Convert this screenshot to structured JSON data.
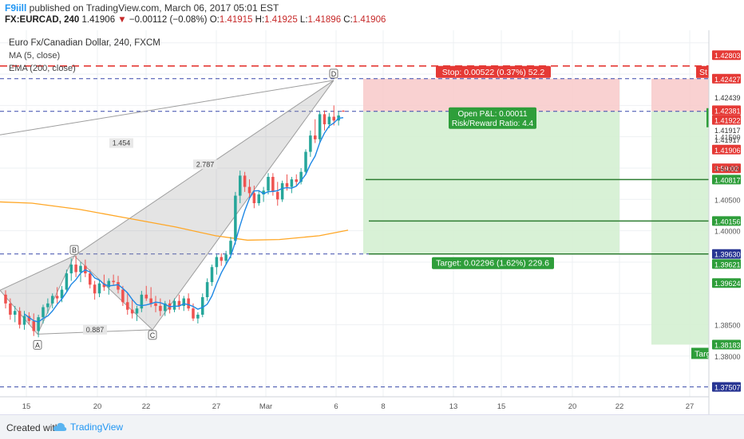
{
  "header": {
    "brand": "F9iill",
    "published": " published on TradingView.com, March 06, 2017 05:01 EST",
    "symbol": "FX:EURCAD, 240",
    "last": "1.41906",
    "arrow": "▼",
    "change": "−0.00112 (−0.08%)",
    "o_label": "O:",
    "o": "1.41915",
    "h_label": "H:",
    "h": "1.41925",
    "l_label": "L:",
    "l": "1.41896",
    "c_label": "C:",
    "c": "1.41906"
  },
  "legend": {
    "title": "Euro Fx/Canadian Dollar, 240, FXCM",
    "ma": "MA (5, close)",
    "ema": "EMA (200, close)"
  },
  "footer": {
    "created": "Created with",
    "brand": "TradingView"
  },
  "colors": {
    "bull": "#26a69a",
    "bear": "#ef5350",
    "ma": "#1e88e5",
    "ema": "#ffa726",
    "stop": "#e53935",
    "target": "#2e7d32",
    "pattern": "#9e9e9e"
  },
  "chart_data": {
    "type": "candlestick",
    "symbol": "FX:EURCAD",
    "timeframe": "240",
    "ylim": [
      1.3735,
      1.432
    ],
    "x_ticks": [
      "15",
      "20",
      "22",
      "27",
      "Mar",
      "6",
      "8",
      "13",
      "15",
      "20",
      "22",
      "27"
    ],
    "price_labels": [
      {
        "text": "1.42803",
        "value": 1.42803,
        "style": "red"
      },
      {
        "text": "1.42427",
        "value": 1.42427,
        "style": "red"
      },
      {
        "text": "1.42439",
        "value": 1.42439,
        "style": "plain"
      },
      {
        "text": "1.42381",
        "value": 1.42381,
        "style": "red"
      },
      {
        "text": "1.41922",
        "value": 1.41922,
        "style": "red"
      },
      {
        "text": "1.41917",
        "value": 1.41917,
        "style": "plain"
      },
      {
        "text": "1.41917",
        "value": 1.41917,
        "style": "plain"
      },
      {
        "text": "1.41906",
        "value": 1.41906,
        "style": "red"
      },
      {
        "text": "3:59:02",
        "value": 1.4176,
        "style": "red"
      },
      {
        "text": "1.41500",
        "value": 1.415,
        "style": "axis"
      },
      {
        "text": "1.41000",
        "value": 1.41,
        "style": "axis"
      },
      {
        "text": "1.40817",
        "value": 1.40817,
        "style": "green"
      },
      {
        "text": "1.40500",
        "value": 1.405,
        "style": "axis"
      },
      {
        "text": "1.40156",
        "value": 1.40156,
        "style": "green"
      },
      {
        "text": "1.40000",
        "value": 1.4,
        "style": "axis"
      },
      {
        "text": "1.39500",
        "value": 1.395,
        "style": "axis"
      },
      {
        "text": "1.39630",
        "value": 1.3963,
        "style": "blue"
      },
      {
        "text": "1.39621",
        "value": 1.39621,
        "style": "green"
      },
      {
        "text": "1.39624",
        "value": 1.39624,
        "style": "green"
      },
      {
        "text": "1.38500",
        "value": 1.385,
        "style": "axis"
      },
      {
        "text": "1.38183",
        "value": 1.38183,
        "style": "green"
      },
      {
        "text": "1.38000",
        "value": 1.38,
        "style": "axis"
      },
      {
        "text": "1.37507",
        "value": 1.37507,
        "style": "blue"
      }
    ],
    "stop_label": "Stop: 0.00522 (0.37%) 52.2",
    "stop_label_cut": "St",
    "target_label": "Target: 0.02296 (1.62%) 229.6",
    "target_label_cut": "Targ",
    "pnl_line1": "Open P&L: 0.00011",
    "pnl_line2": "Risk/Reward Ratio: 4.4",
    "pattern_points": {
      "A": "A",
      "B": "B",
      "C": "C",
      "D": "D"
    },
    "pattern_ratios": [
      "1.454",
      "2.787",
      "0.887"
    ],
    "candles": [
      [
        1.3898,
        1.3905,
        1.3876,
        1.3884
      ],
      [
        1.3884,
        1.3892,
        1.3858,
        1.3866
      ],
      [
        1.3866,
        1.388,
        1.3854,
        1.3872
      ],
      [
        1.3872,
        1.3878,
        1.3844,
        1.385
      ],
      [
        1.385,
        1.3872,
        1.3842,
        1.3864
      ],
      [
        1.3864,
        1.387,
        1.385,
        1.3856
      ],
      [
        1.3856,
        1.3868,
        1.3832,
        1.384
      ],
      [
        1.384,
        1.3866,
        1.383,
        1.3862
      ],
      [
        1.3862,
        1.3882,
        1.3852,
        1.3878
      ],
      [
        1.3878,
        1.3892,
        1.3868,
        1.3884
      ],
      [
        1.3884,
        1.39,
        1.3876,
        1.3896
      ],
      [
        1.3896,
        1.391,
        1.3884,
        1.3892
      ],
      [
        1.3892,
        1.3912,
        1.3886,
        1.3906
      ],
      [
        1.3906,
        1.3938,
        1.3902,
        1.3932
      ],
      [
        1.3932,
        1.3956,
        1.392,
        1.3946
      ],
      [
        1.3946,
        1.396,
        1.3926,
        1.3934
      ],
      [
        1.3934,
        1.395,
        1.3918,
        1.3944
      ],
      [
        1.3944,
        1.3954,
        1.3926,
        1.3932
      ],
      [
        1.3932,
        1.3938,
        1.3908,
        1.3914
      ],
      [
        1.3914,
        1.392,
        1.389,
        1.39
      ],
      [
        1.39,
        1.3922,
        1.3894,
        1.3916
      ],
      [
        1.3916,
        1.393,
        1.3904,
        1.391
      ],
      [
        1.391,
        1.3924,
        1.3898,
        1.392
      ],
      [
        1.392,
        1.393,
        1.3912,
        1.3918
      ],
      [
        1.3918,
        1.3928,
        1.39,
        1.3906
      ],
      [
        1.3906,
        1.3912,
        1.388,
        1.3886
      ],
      [
        1.3886,
        1.39,
        1.3866,
        1.3874
      ],
      [
        1.3874,
        1.389,
        1.386,
        1.3868
      ],
      [
        1.3868,
        1.388,
        1.3856,
        1.3876
      ],
      [
        1.3876,
        1.3904,
        1.387,
        1.3898
      ],
      [
        1.3898,
        1.3912,
        1.3888,
        1.3892
      ],
      [
        1.3892,
        1.391,
        1.3878,
        1.3884
      ],
      [
        1.3884,
        1.3896,
        1.387,
        1.388
      ],
      [
        1.388,
        1.3892,
        1.3864,
        1.3872
      ],
      [
        1.3872,
        1.3888,
        1.3864,
        1.3884
      ],
      [
        1.3884,
        1.389,
        1.3868,
        1.3874
      ],
      [
        1.3874,
        1.3892,
        1.387,
        1.3888
      ],
      [
        1.3888,
        1.3898,
        1.3874,
        1.388
      ],
      [
        1.388,
        1.3896,
        1.3872,
        1.3892
      ],
      [
        1.3892,
        1.39,
        1.3872,
        1.3876
      ],
      [
        1.3876,
        1.3884,
        1.3856,
        1.386
      ],
      [
        1.386,
        1.387,
        1.3852,
        1.3866
      ],
      [
        1.3866,
        1.39,
        1.3862,
        1.3894
      ],
      [
        1.3894,
        1.3924,
        1.3888,
        1.3918
      ],
      [
        1.3918,
        1.3946,
        1.3912,
        1.3942
      ],
      [
        1.3942,
        1.3962,
        1.393,
        1.3958
      ],
      [
        1.3958,
        1.3964,
        1.3944,
        1.3952
      ],
      [
        1.3952,
        1.3968,
        1.3946,
        1.3962
      ],
      [
        1.3962,
        1.399,
        1.3956,
        1.3984
      ],
      [
        1.3984,
        1.4062,
        1.3978,
        1.4056
      ],
      [
        1.4056,
        1.4096,
        1.4044,
        1.4088
      ],
      [
        1.4088,
        1.4094,
        1.4062,
        1.407
      ],
      [
        1.407,
        1.4082,
        1.405,
        1.406
      ],
      [
        1.406,
        1.4072,
        1.4036,
        1.4044
      ],
      [
        1.4044,
        1.4064,
        1.404,
        1.4058
      ],
      [
        1.4058,
        1.407,
        1.4046,
        1.4064
      ],
      [
        1.4064,
        1.4092,
        1.4058,
        1.4086
      ],
      [
        1.4086,
        1.4092,
        1.4056,
        1.4062
      ],
      [
        1.4062,
        1.4078,
        1.404,
        1.405
      ],
      [
        1.405,
        1.408,
        1.4046,
        1.4076
      ],
      [
        1.4076,
        1.409,
        1.4064,
        1.407
      ],
      [
        1.407,
        1.4086,
        1.406,
        1.4082
      ],
      [
        1.4082,
        1.409,
        1.4072,
        1.4078
      ],
      [
        1.4078,
        1.41,
        1.4074,
        1.4094
      ],
      [
        1.4094,
        1.413,
        1.409,
        1.4126
      ],
      [
        1.4126,
        1.416,
        1.4118,
        1.4152
      ],
      [
        1.4152,
        1.4178,
        1.414,
        1.4146
      ],
      [
        1.4146,
        1.419,
        1.414,
        1.4186
      ],
      [
        1.4186,
        1.4192,
        1.416,
        1.417
      ],
      [
        1.417,
        1.4188,
        1.4164,
        1.4182
      ],
      [
        1.4182,
        1.42,
        1.4168,
        1.4176
      ],
      [
        1.4176,
        1.419,
        1.4168,
        1.4184
      ],
      [
        1.41915,
        1.41925,
        1.41896,
        1.41906
      ]
    ]
  }
}
